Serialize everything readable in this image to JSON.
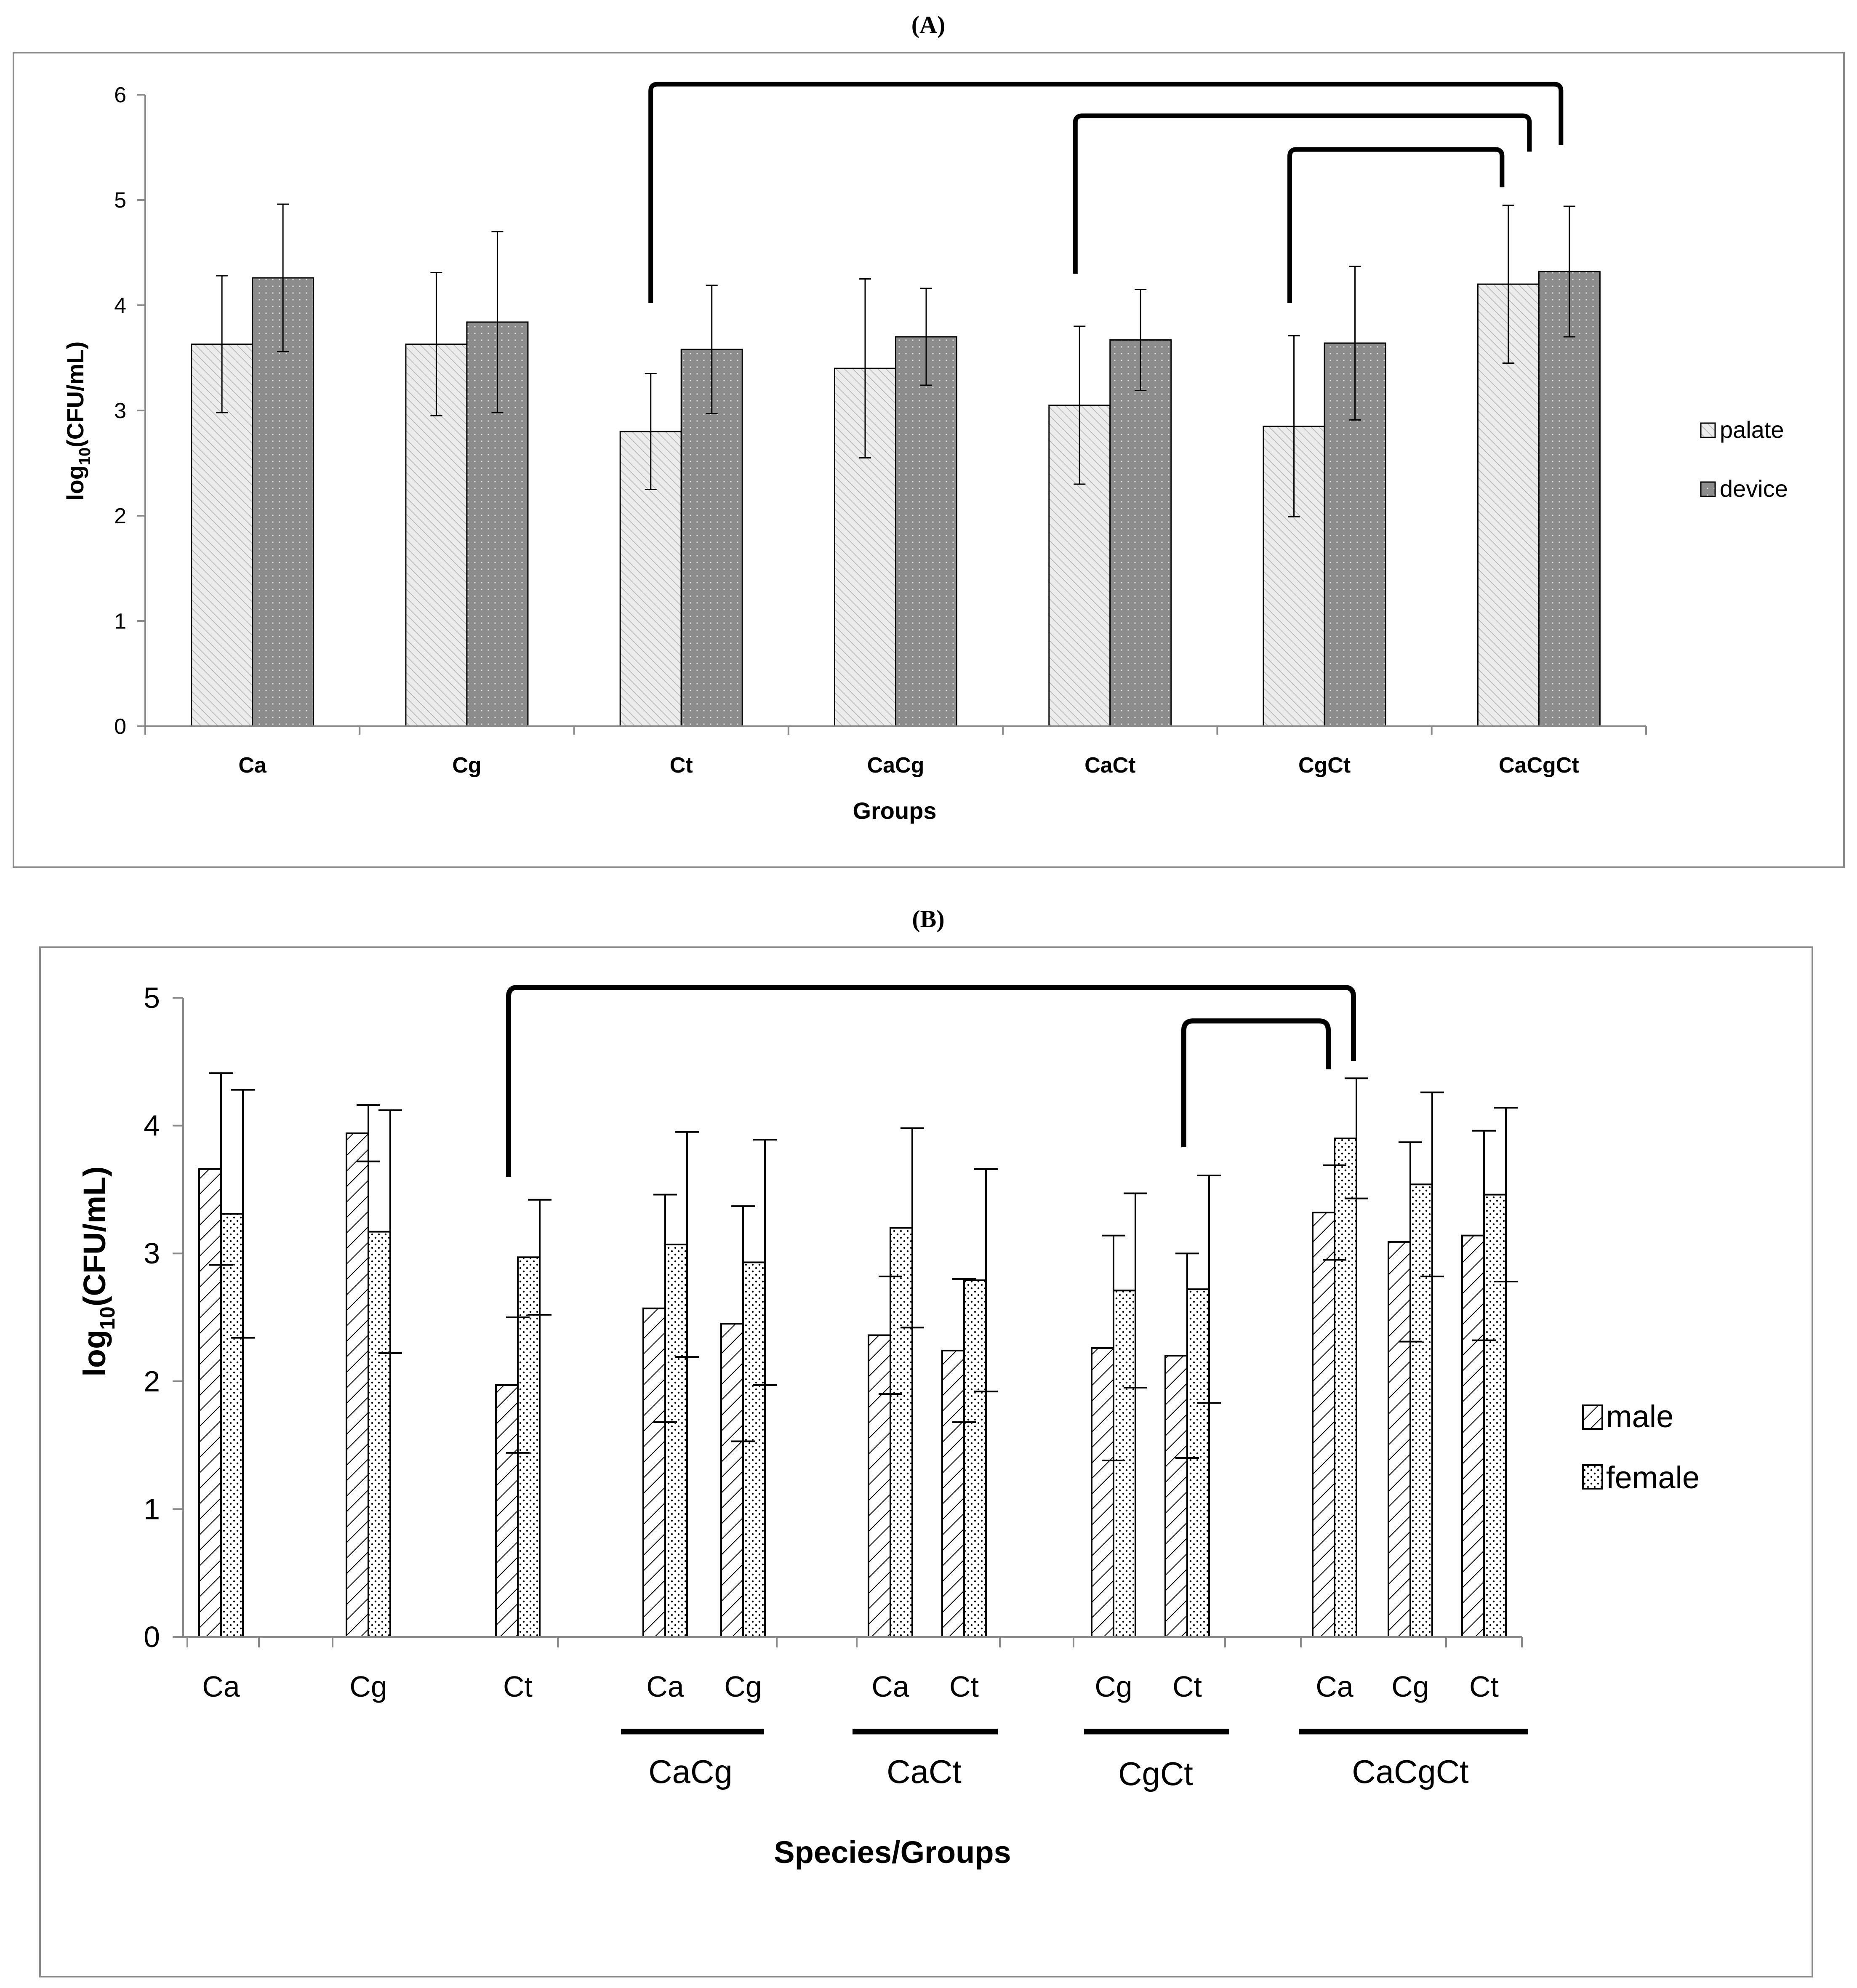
{
  "panels": {
    "a": {
      "label_open": "(",
      "label_letter": "A",
      "label_close": ")"
    },
    "b": {
      "label_open": "(",
      "label_letter": "B",
      "label_close": ")"
    }
  },
  "colors": {
    "palate": "#ececec",
    "device": "#8c8c8c",
    "male": "#ffffff",
    "female": "#ffffff",
    "axis": "#8a8a8a",
    "bracket": "#000000"
  },
  "chart_data": [
    {
      "type": "bar",
      "title": "",
      "xlabel": "Groups",
      "ylabel_main": "log",
      "ylabel_sub": "10",
      "ylabel_rest": "(CFU/mL)",
      "ylim": [
        0,
        6
      ],
      "yticks": [
        "0",
        "1",
        "2",
        "3",
        "4",
        "5",
        "6"
      ],
      "categories": [
        "Ca",
        "Cg",
        "Ct",
        "CaCg",
        "CaCt",
        "CgCt",
        "CaCgCt"
      ],
      "series": [
        {
          "name": "palate",
          "values": [
            3.63,
            3.63,
            2.8,
            3.4,
            3.05,
            2.85,
            4.2
          ],
          "errors": [
            0.65,
            0.68,
            0.55,
            0.85,
            0.75,
            0.86,
            0.75
          ]
        },
        {
          "name": "device",
          "values": [
            4.26,
            3.84,
            3.58,
            3.7,
            3.67,
            3.64,
            4.32
          ],
          "errors": [
            0.7,
            0.86,
            0.61,
            0.46,
            0.48,
            0.73,
            0.62
          ]
        }
      ],
      "legend": [
        "palate",
        "device"
      ],
      "legend_position": "right",
      "brackets": [
        [
          "Ct",
          "CaCgCt"
        ],
        [
          "CaCt",
          "CaCgCt"
        ],
        [
          "CgCt",
          "CaCgCt"
        ]
      ]
    },
    {
      "type": "bar",
      "title": "",
      "xlabel": "Species/Groups",
      "ylabel_main": "log",
      "ylabel_sub": "10",
      "ylabel_rest": "(CFU/mL)",
      "ylim": [
        0,
        5
      ],
      "yticks": [
        "0",
        "1",
        "2",
        "3",
        "4",
        "5"
      ],
      "categories": [
        "Ca",
        "Cg",
        "Ct",
        "Ca",
        "Cg",
        "Ca",
        "Ct",
        "Cg",
        "Ct",
        "Ca",
        "Cg",
        "Ct"
      ],
      "groups": [
        {
          "label": "CaCg",
          "members": [
            3,
            4
          ]
        },
        {
          "label": "CaCt",
          "members": [
            5,
            6
          ]
        },
        {
          "label": "CgCt",
          "members": [
            7,
            8
          ]
        },
        {
          "label": "CaCgCt",
          "members": [
            9,
            10,
            11
          ]
        }
      ],
      "series": [
        {
          "name": "male",
          "values": [
            3.66,
            3.94,
            1.97,
            2.57,
            2.45,
            2.36,
            2.24,
            2.26,
            2.2,
            3.32,
            3.09,
            3.14
          ],
          "errors": [
            0.75,
            0.22,
            0.53,
            0.89,
            0.92,
            0.46,
            0.56,
            0.88,
            0.8,
            0.37,
            0.78,
            0.82
          ]
        },
        {
          "name": "female",
          "values": [
            3.31,
            3.17,
            2.97,
            3.07,
            2.93,
            3.2,
            2.79,
            2.71,
            2.72,
            3.9,
            3.54,
            3.46
          ],
          "errors": [
            0.97,
            0.95,
            0.45,
            0.88,
            0.96,
            0.78,
            0.87,
            0.76,
            0.89,
            0.47,
            0.72,
            0.68
          ]
        }
      ],
      "legend": [
        "male",
        "female"
      ],
      "legend_position": "right",
      "brackets": [
        [
          "Ct",
          "CaCgCt Ca (female)"
        ],
        [
          "CgCt Ct",
          "CaCgCt Ca (male)"
        ]
      ]
    }
  ]
}
